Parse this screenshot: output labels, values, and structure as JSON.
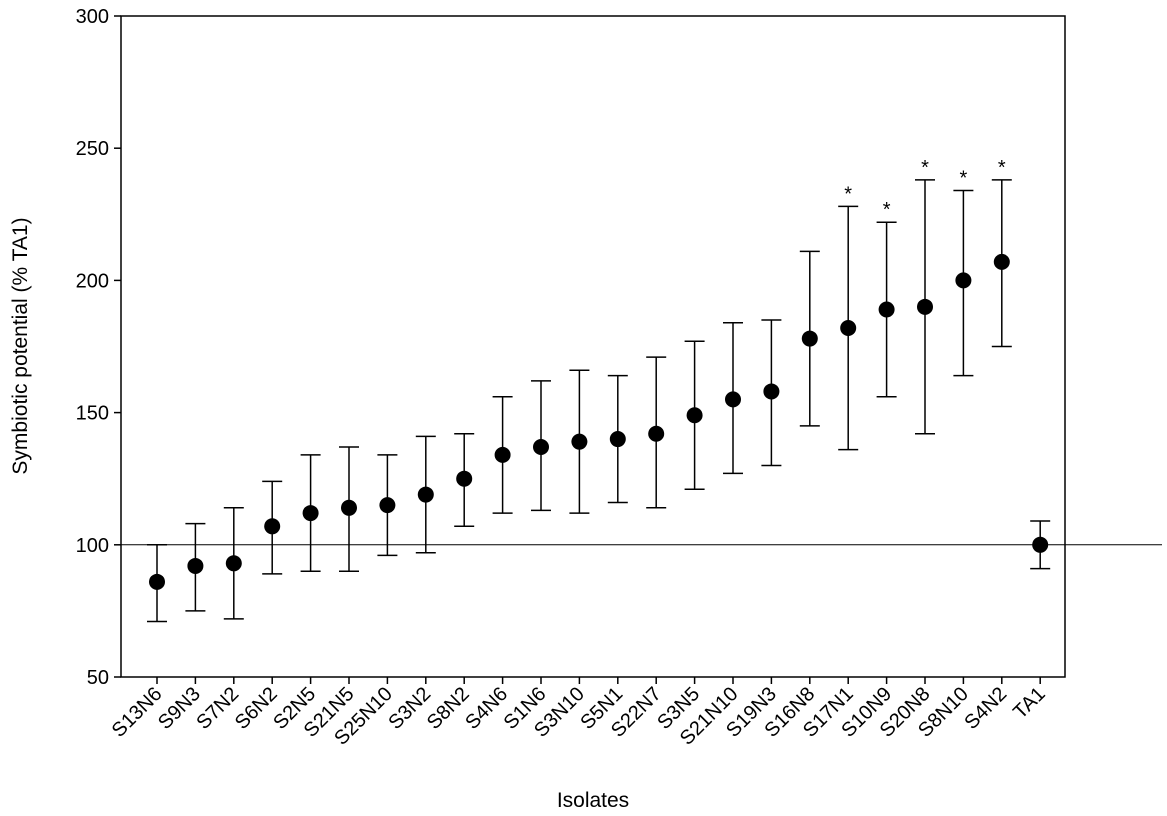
{
  "chart_data": {
    "type": "scatter",
    "xlabel": "Isolates",
    "ylabel": "Symbiotic potential (% TA1)",
    "ylim": [
      50,
      300
    ],
    "yticks": [
      50,
      100,
      150,
      200,
      250,
      300
    ],
    "grid": false,
    "reference_line": 100,
    "significance_marker": "*",
    "colors": {
      "points": "#000000",
      "axes": "#000000"
    },
    "points": [
      {
        "label": "S13N6",
        "mean": 86,
        "lower": 71,
        "upper": 100,
        "significant": false
      },
      {
        "label": "S9N3",
        "mean": 92,
        "lower": 75,
        "upper": 108,
        "significant": false
      },
      {
        "label": "S7N2",
        "mean": 93,
        "lower": 72,
        "upper": 114,
        "significant": false
      },
      {
        "label": "S6N2",
        "mean": 107,
        "lower": 89,
        "upper": 124,
        "significant": false
      },
      {
        "label": "S2N5",
        "mean": 112,
        "lower": 90,
        "upper": 134,
        "significant": false
      },
      {
        "label": "S21N5",
        "mean": 114,
        "lower": 90,
        "upper": 137,
        "significant": false
      },
      {
        "label": "S25N10",
        "mean": 115,
        "lower": 96,
        "upper": 134,
        "significant": false
      },
      {
        "label": "S3N2",
        "mean": 119,
        "lower": 97,
        "upper": 141,
        "significant": false
      },
      {
        "label": "S8N2",
        "mean": 125,
        "lower": 107,
        "upper": 142,
        "significant": false
      },
      {
        "label": "S4N6",
        "mean": 134,
        "lower": 112,
        "upper": 156,
        "significant": false
      },
      {
        "label": "S1N6",
        "mean": 137,
        "lower": 113,
        "upper": 162,
        "significant": false
      },
      {
        "label": "S3N10",
        "mean": 139,
        "lower": 112,
        "upper": 166,
        "significant": false
      },
      {
        "label": "S5N1",
        "mean": 140,
        "lower": 116,
        "upper": 164,
        "significant": false
      },
      {
        "label": "S22N7",
        "mean": 142,
        "lower": 114,
        "upper": 171,
        "significant": false
      },
      {
        "label": "S3N5",
        "mean": 149,
        "lower": 121,
        "upper": 177,
        "significant": false
      },
      {
        "label": "S21N10",
        "mean": 155,
        "lower": 127,
        "upper": 184,
        "significant": false
      },
      {
        "label": "S19N3",
        "mean": 158,
        "lower": 130,
        "upper": 185,
        "significant": false
      },
      {
        "label": "S16N8",
        "mean": 178,
        "lower": 145,
        "upper": 211,
        "significant": false
      },
      {
        "label": "S17N1",
        "mean": 182,
        "lower": 136,
        "upper": 228,
        "significant": true
      },
      {
        "label": "S10N9",
        "mean": 189,
        "lower": 156,
        "upper": 222,
        "significant": true
      },
      {
        "label": "S20N8",
        "mean": 190,
        "lower": 142,
        "upper": 238,
        "significant": true
      },
      {
        "label": "S8N10",
        "mean": 200,
        "lower": 164,
        "upper": 234,
        "significant": true
      },
      {
        "label": "S4N2",
        "mean": 207,
        "lower": 175,
        "upper": 238,
        "significant": true
      },
      {
        "label": "TA1",
        "mean": 100,
        "lower": 91,
        "upper": 109,
        "significant": false
      }
    ]
  }
}
